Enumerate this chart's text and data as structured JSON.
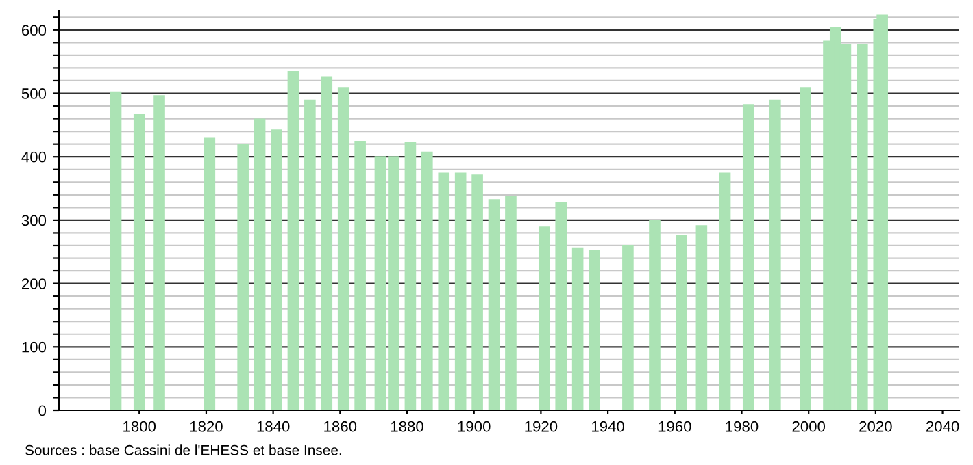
{
  "chart_data": {
    "type": "bar",
    "x": [
      1793,
      1800,
      1806,
      1821,
      1831,
      1836,
      1841,
      1846,
      1851,
      1856,
      1861,
      1866,
      1872,
      1876,
      1881,
      1886,
      1891,
      1896,
      1901,
      1906,
      1911,
      1921,
      1926,
      1931,
      1936,
      1946,
      1954,
      1962,
      1968,
      1975,
      1982,
      1990,
      1999,
      2006,
      2008,
      2011,
      2016,
      2021,
      2022
    ],
    "values": [
      503,
      468,
      497,
      430,
      420,
      460,
      443,
      535,
      490,
      527,
      510,
      425,
      401,
      401,
      424,
      408,
      375,
      375,
      372,
      333,
      338,
      290,
      328,
      257,
      253,
      261,
      300,
      277,
      292,
      375,
      483,
      490,
      510,
      583,
      604,
      578,
      578,
      617,
      624
    ],
    "color": "#abe3b4",
    "xlim": [
      1776,
      2045
    ],
    "xticks": [
      1800,
      1820,
      1840,
      1860,
      1880,
      1900,
      1920,
      1940,
      1960,
      1980,
      2000,
      2020,
      2040
    ],
    "ylim": [
      0,
      630
    ],
    "yticks": [
      0,
      {
        "value": 20,
        "label": null
      },
      {
        "value": 40,
        "label": null
      },
      {
        "value": 60,
        "label": null
      },
      {
        "value": 80,
        "label": null
      },
      100,
      {
        "value": 120,
        "label": null
      },
      {
        "value": 140,
        "label": null
      },
      {
        "value": 160,
        "label": null
      },
      {
        "value": 180,
        "label": null
      },
      200,
      {
        "value": 220,
        "label": null
      },
      {
        "value": 240,
        "label": null
      },
      {
        "value": 260,
        "label": null
      },
      {
        "value": 280,
        "label": null
      },
      300,
      {
        "value": 320,
        "label": null
      },
      {
        "value": 340,
        "label": null
      },
      {
        "value": 360,
        "label": null
      },
      {
        "value": 380,
        "label": null
      },
      400,
      {
        "value": 420,
        "label": null
      },
      {
        "value": 440,
        "label": null
      },
      {
        "value": 460,
        "label": null
      },
      {
        "value": 480,
        "label": null
      },
      500,
      {
        "value": 520,
        "label": null
      },
      {
        "value": 540,
        "label": null
      },
      {
        "value": 560,
        "label": null
      },
      {
        "value": 580,
        "label": null
      },
      600,
      {
        "value": 620,
        "label": null
      }
    ],
    "grid": "y",
    "annotations": [
      "Sources : base Cassini de l'EHESS et base Insee."
    ]
  }
}
